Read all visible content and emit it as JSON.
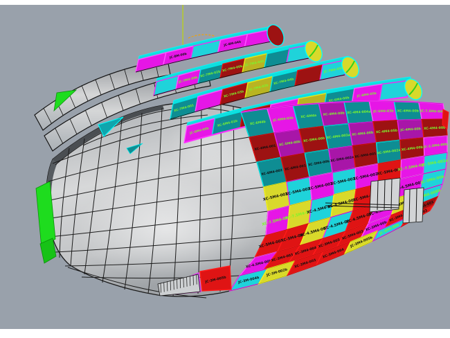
{
  "viewport": {
    "bg": "#99a1ab",
    "frame": "#ffffff"
  },
  "axis": {
    "color": "#b8cf1f"
  },
  "palette": {
    "fill": {
      "magenta": "#e616e6",
      "cyan": "#1fd3da",
      "teal": "#0e8d93",
      "red": "#df1414",
      "darkred": "#9d1212",
      "purple": "#a816a8",
      "yellow": "#d9d92b",
      "olive": "#b9b422",
      "green": "#1edc1e",
      "gray": "#d2d4d6"
    },
    "border": {
      "magenta": "#ff55ff",
      "cyan": "#ef2cef",
      "teal": "#00e6e6",
      "red": "#ff1a1a",
      "darkred": "#e01111",
      "purple": "#f01cf0",
      "yellow": "#f4f41c",
      "olive": "#e8e818",
      "green": "#00c800",
      "gray": "#111111"
    },
    "text": {
      "k": "#101010",
      "g": "#7df32e"
    }
  },
  "rows": [
    {
      "panels": [
        {
          "c": "teal",
          "t": "XC-6M4b",
          "tc": "g"
        },
        {
          "c": "magenta",
          "t": "JC-6M4-03b",
          "tc": "g"
        },
        {
          "c": "teal",
          "t": "XC-6M4a",
          "tc": "g"
        },
        {
          "c": "purple",
          "t": "XC-4M4-00b",
          "tc": "g"
        },
        {
          "c": "teal",
          "t": "XC-4M4-004a",
          "tc": "g"
        },
        {
          "c": "magenta",
          "t": "JC-5M4-03b",
          "tc": "g"
        },
        {
          "c": "teal",
          "t": "XC-4M4-00b",
          "tc": "g"
        },
        {
          "c": "magenta",
          "t": "JC-7.5M4-04b",
          "tc": "g"
        }
      ]
    },
    {
      "panels": [
        {
          "c": "darkred",
          "t": "XC-6M4-001",
          "tc": "k"
        },
        {
          "c": "purple",
          "t": "XC-5M4-00b",
          "tc": "g"
        },
        {
          "c": "darkred",
          "t": "XC-5M4-00b",
          "tc": "g"
        },
        {
          "c": "teal",
          "t": "XC-4M4-003a",
          "tc": "g"
        },
        {
          "c": "purple",
          "t": "XC-4M4-00b",
          "tc": "g"
        },
        {
          "c": "darkred",
          "t": "XC-4M4-05b",
          "tc": "g"
        },
        {
          "c": "purple",
          "t": "JC-4M4-00b",
          "tc": "g"
        },
        {
          "c": "darkred",
          "t": "XC-4M4-00b",
          "tc": "g"
        }
      ]
    },
    {
      "panels": [
        {
          "c": "teal",
          "t": "XC-6M4-002",
          "tc": "k"
        },
        {
          "c": "darkred",
          "t": "XC-6M4-001",
          "tc": "k"
        },
        {
          "c": "teal",
          "t": "XC-5M4-00b",
          "tc": "k"
        },
        {
          "c": "purple",
          "t": "XC-5M4-002a",
          "tc": "k"
        },
        {
          "c": "darkred",
          "t": "XC-5M4-001",
          "tc": "k"
        },
        {
          "c": "teal",
          "t": "XC-5M4-002a",
          "tc": "g"
        },
        {
          "c": "darkred",
          "t": "XC-4M4-00b",
          "tc": "g"
        },
        {
          "c": "magenta",
          "t": "JC-2.5M4-00b",
          "tc": "g"
        }
      ]
    },
    {
      "panels": [
        {
          "c": "yellow",
          "t": "XC-5M4-002b",
          "tc": "k"
        },
        {
          "c": "cyan",
          "t": "XC-5M4-002b",
          "tc": "k"
        },
        {
          "c": "magenta",
          "t": "XC-5M4-0021",
          "tc": "k"
        },
        {
          "c": "cyan",
          "t": "XC-5M4-002a",
          "tc": "k"
        },
        {
          "c": "magenta",
          "t": "XC-5M4-002b",
          "tc": "k"
        },
        {
          "c": "red",
          "t": "XC-5M4-002",
          "tc": "k"
        },
        {
          "c": "magenta",
          "t": "XC-7.5M4-00b",
          "tc": "g"
        },
        {
          "c": "cyan",
          "t": "JC-5M4-002a",
          "tc": "g"
        }
      ]
    },
    {
      "panels": [
        {
          "c": "magenta",
          "t": "XC-7.5M4-001b",
          "tc": "g"
        },
        {
          "c": "yellow",
          "t": "XC-7.5M4-001",
          "tc": "g"
        },
        {
          "c": "cyan",
          "t": "XC-4.5M4-001",
          "tc": "k"
        },
        {
          "c": "yellow",
          "t": "XC-4.5M4-002b",
          "tc": "k"
        },
        {
          "c": "red",
          "t": "XC-5M4-001",
          "tc": "k"
        },
        {
          "c": "red",
          "t": "XC-5M4-002",
          "tc": "k"
        },
        {
          "c": "magenta",
          "t": "XC-4.5M4-002b",
          "tc": "k"
        },
        {
          "c": "cyan",
          "t": "JC-3M4-00b",
          "tc": "g"
        }
      ]
    },
    {
      "panels": [
        {
          "c": "red",
          "t": "XC-5M4-001",
          "tc": "k"
        },
        {
          "c": "red",
          "t": "XC-5M4-002",
          "tc": "k"
        },
        {
          "c": "yellow",
          "t": "XC-4.5M4-002b",
          "tc": "k"
        },
        {
          "c": "cyan",
          "t": "XC-4.5M4-001",
          "tc": "k"
        },
        {
          "c": "red",
          "t": "XC-4.5M4-05b",
          "tc": "k"
        },
        {
          "c": "magenta",
          "t": "XC-4.5M4-00b",
          "tc": "k"
        },
        {
          "c": "yellow",
          "t": "JC-3M4-005b",
          "tc": "k"
        },
        {
          "c": "cyan",
          "t": "JC-3M4-006b",
          "tc": "g"
        }
      ]
    },
    {
      "panels": [
        {
          "c": "magenta",
          "t": "XC-4.5M4-00b",
          "tc": "k"
        },
        {
          "c": "red",
          "t": "XC-3M4-003",
          "tc": "k"
        },
        {
          "c": "red",
          "t": "XC-3M4-004",
          "tc": "k"
        },
        {
          "c": "red",
          "t": "XC-3M4-005",
          "tc": "k"
        },
        {
          "c": "red",
          "t": "XC-5M4-003",
          "tc": "k"
        },
        {
          "c": "magenta",
          "t": "XC-3M4-00b",
          "tc": "k"
        },
        {
          "c": "red",
          "t": "XC-3M4-002",
          "tc": "k"
        },
        {
          "c": "darkred",
          "t": "XC-3M4-001",
          "tc": "k"
        }
      ]
    },
    {
      "panels": [
        {
          "c": "cyan",
          "t": "JC-3M-004b",
          "tc": "k"
        },
        {
          "c": "yellow",
          "t": "JC-3M-002b",
          "tc": "k"
        },
        {
          "c": "red",
          "t": "XC-3M4-003",
          "tc": "k"
        },
        {
          "c": "red",
          "t": "XC-3M4-004",
          "tc": "k"
        },
        {
          "c": "yellow",
          "t": "JC-3M4-005b",
          "tc": "k"
        },
        {
          "c": "cyan",
          "t": "JC-3M4-00b",
          "tc": "g"
        },
        {
          "c": "red",
          "t": "XC-3M4-002",
          "tc": "k"
        }
      ]
    }
  ],
  "strips": [
    {
      "cap": "darkred",
      "panels": [
        {
          "c": "magenta",
          "t": "",
          "tc": "k"
        },
        {
          "c": "magenta",
          "t": "JC-8M-00b",
          "tc": "k"
        },
        {
          "c": "cyan",
          "t": "",
          "tc": "k"
        },
        {
          "c": "magenta",
          "t": "JC-8M-04b",
          "tc": "k"
        },
        {
          "c": "magenta",
          "t": "",
          "tc": "k"
        }
      ]
    },
    {
      "cap": "yellow",
      "panels": [
        {
          "c": "cyan",
          "t": "",
          "tc": "g"
        },
        {
          "c": "magenta",
          "t": "JC-7M4-00b",
          "tc": "g"
        },
        {
          "c": "teal",
          "t": "XC-7M4-02b",
          "tc": "g"
        },
        {
          "c": "darkred",
          "t": "XC-7M4-00b",
          "tc": "g"
        },
        {
          "c": "olive",
          "t": "JC-7M4-04b",
          "tc": "g"
        },
        {
          "c": "teal",
          "t": "",
          "tc": "g"
        },
        {
          "c": "cyan",
          "t": "",
          "tc": "g"
        }
      ]
    },
    {
      "cap": "yellow",
      "panels": [
        {
          "c": "teal",
          "t": "XC-7M4-001",
          "tc": "g"
        },
        {
          "c": "magenta",
          "t": "",
          "tc": "g"
        },
        {
          "c": "darkred",
          "t": "XC-7M4-03b",
          "tc": "g"
        },
        {
          "c": "olive",
          "t": "JC-7M4-02b",
          "tc": "g"
        },
        {
          "c": "teal",
          "t": "XC-7M4-04b",
          "tc": "g"
        },
        {
          "c": "darkred",
          "t": "",
          "tc": "g"
        },
        {
          "c": "cyan",
          "t": "JC-7M4-05b",
          "tc": "g"
        }
      ]
    },
    {
      "cap": "yellow",
      "panels": [
        {
          "c": "magenta",
          "t": "JC-6M4-00b",
          "tc": "g"
        },
        {
          "c": "teal",
          "t": "XC-6M4-01b",
          "tc": "g"
        },
        {
          "c": "darkred",
          "t": "XC-6M4-02b",
          "tc": "g"
        },
        {
          "c": "magenta",
          "t": "",
          "tc": "g"
        },
        {
          "c": "olive",
          "t": "JC-6M4-03b",
          "tc": "g"
        },
        {
          "c": "teal",
          "t": "XC-6M4-04b",
          "tc": "g"
        },
        {
          "c": "magenta",
          "t": "JC-6M4-05b",
          "tc": "g"
        },
        {
          "c": "cyan",
          "t": "",
          "tc": "g"
        }
      ]
    }
  ],
  "extras": {
    "bottom_panels": [
      {
        "c": "cyan",
        "t": "JC-3M-000b",
        "tc": "k"
      },
      {
        "c": "red",
        "t": "JC-3M-005b",
        "tc": "k"
      }
    ],
    "accents": {
      "green_left": "#1edc1e",
      "cyan_sliver": "#0fa5ad"
    }
  }
}
